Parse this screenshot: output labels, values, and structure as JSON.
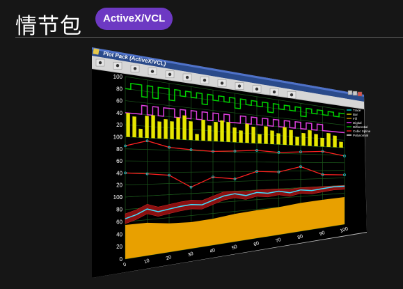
{
  "page": {
    "title": "情节包",
    "badge": "ActiveX/VCL"
  },
  "window": {
    "title": "Plot Pack (ActiveX/VCL)",
    "toolbar_icons": [
      "play-icon",
      "pause-icon",
      "pan-icon",
      "zoom-box-icon",
      "zoom-out-icon",
      "zoom-in-icon",
      "blank-tool-icon",
      "axis-fit-icon",
      "copy-icon",
      "paste-icon",
      "save-icon",
      "print-icon"
    ],
    "window_controls": [
      "minimize",
      "maximize",
      "close"
    ]
  },
  "chart_data": {
    "type": "line",
    "panels": [
      {
        "name": "digital-top",
        "y_ticks": [
          "100",
          "80",
          "60",
          "40",
          "20",
          "0"
        ]
      },
      {
        "name": "middle",
        "y_ticks": [
          "100",
          "80",
          "60",
          "40",
          "20",
          "0"
        ]
      },
      {
        "name": "bottom",
        "y_ticks": [
          "100",
          "80",
          "60",
          "40",
          "20",
          "0"
        ]
      }
    ],
    "x_ticks": [
      "0",
      "10",
      "20",
      "30",
      "40",
      "50",
      "60",
      "70",
      "80",
      "90",
      "100"
    ],
    "xlim": [
      0,
      100
    ],
    "ylim": [
      0,
      100
    ],
    "legend": {
      "placement": "right",
      "entries": [
        {
          "name": "Trace",
          "color": "#00e5e5"
        },
        {
          "name": "Bar",
          "color": "#e6e600"
        },
        {
          "name": "Fill",
          "color": "#e0a000"
        },
        {
          "name": "Digital",
          "color": "#ff33ff"
        },
        {
          "name": "Differential",
          "color": "#00cc00"
        },
        {
          "name": "Cubic Spline",
          "color": "#ff2020"
        },
        {
          "name": "Polynomial",
          "color": "#ffffff"
        }
      ]
    },
    "series": {
      "green_digital": [
        80,
        90,
        90,
        70,
        90,
        70,
        90,
        90,
        70,
        90,
        80,
        90,
        80,
        90,
        70,
        90,
        80,
        90,
        80,
        90,
        70,
        90,
        80,
        90,
        80,
        90,
        70,
        90,
        80,
        90,
        80,
        90,
        70,
        90,
        80,
        90,
        80,
        90,
        80,
        90
      ],
      "magenta_digital": [
        40,
        40,
        40,
        55,
        40,
        55,
        40,
        55,
        55,
        40,
        55,
        40,
        55,
        40,
        55,
        40,
        55,
        40,
        55,
        40,
        40,
        55,
        40,
        55,
        40,
        55,
        40,
        55,
        40,
        55,
        40,
        55,
        40,
        55,
        40,
        55,
        40,
        40,
        40,
        40
      ],
      "yellow_bars_x": [
        5,
        10,
        17,
        23,
        30,
        36,
        42,
        47,
        52,
        57,
        63,
        68,
        74,
        79,
        84,
        89,
        95,
        100,
        105,
        110,
        116,
        121,
        126,
        131,
        137,
        142,
        147,
        152,
        158,
        163,
        168,
        174,
        179,
        184,
        189
      ],
      "yellow_bars_y": [
        40,
        35,
        15,
        38,
        40,
        30,
        35,
        32,
        40,
        45,
        35,
        12,
        40,
        30,
        38,
        42,
        40,
        30,
        25,
        40,
        35,
        20,
        38,
        30,
        25,
        40,
        35,
        20,
        30,
        38,
        30,
        22,
        35,
        30,
        15
      ],
      "red_spline_upper": [
        [
          0,
          85
        ],
        [
          10,
          95
        ],
        [
          20,
          85
        ],
        [
          30,
          82
        ],
        [
          40,
          80
        ],
        [
          50,
          82
        ],
        [
          60,
          85
        ],
        [
          70,
          82
        ],
        [
          80,
          85
        ],
        [
          90,
          88
        ],
        [
          100,
          78
        ]
      ],
      "red_spline_lower": [
        [
          0,
          40
        ],
        [
          10,
          38
        ],
        [
          20,
          35
        ],
        [
          30,
          12
        ],
        [
          40,
          30
        ],
        [
          50,
          25
        ],
        [
          60,
          40
        ],
        [
          70,
          38
        ],
        [
          80,
          50
        ],
        [
          90,
          30
        ],
        [
          100,
          28
        ]
      ],
      "cyan_trace": [
        [
          0,
          65
        ],
        [
          5,
          70
        ],
        [
          10,
          78
        ],
        [
          15,
          72
        ],
        [
          20,
          75
        ],
        [
          25,
          78
        ],
        [
          30,
          80
        ],
        [
          35,
          78
        ],
        [
          40,
          85
        ],
        [
          45,
          92
        ],
        [
          50,
          95
        ],
        [
          55,
          90
        ],
        [
          60,
          95
        ],
        [
          65,
          92
        ],
        [
          70,
          95
        ],
        [
          75,
          90
        ],
        [
          80,
          95
        ],
        [
          85,
          92
        ],
        [
          90,
          95
        ],
        [
          95,
          98
        ],
        [
          100,
          98
        ]
      ],
      "orange_fill_top": [
        [
          0,
          55
        ],
        [
          10,
          55
        ],
        [
          20,
          50
        ],
        [
          30,
          48
        ],
        [
          40,
          50
        ],
        [
          50,
          55
        ],
        [
          60,
          58
        ],
        [
          70,
          60
        ],
        [
          80,
          65
        ],
        [
          90,
          68
        ],
        [
          100,
          70
        ]
      ]
    }
  }
}
